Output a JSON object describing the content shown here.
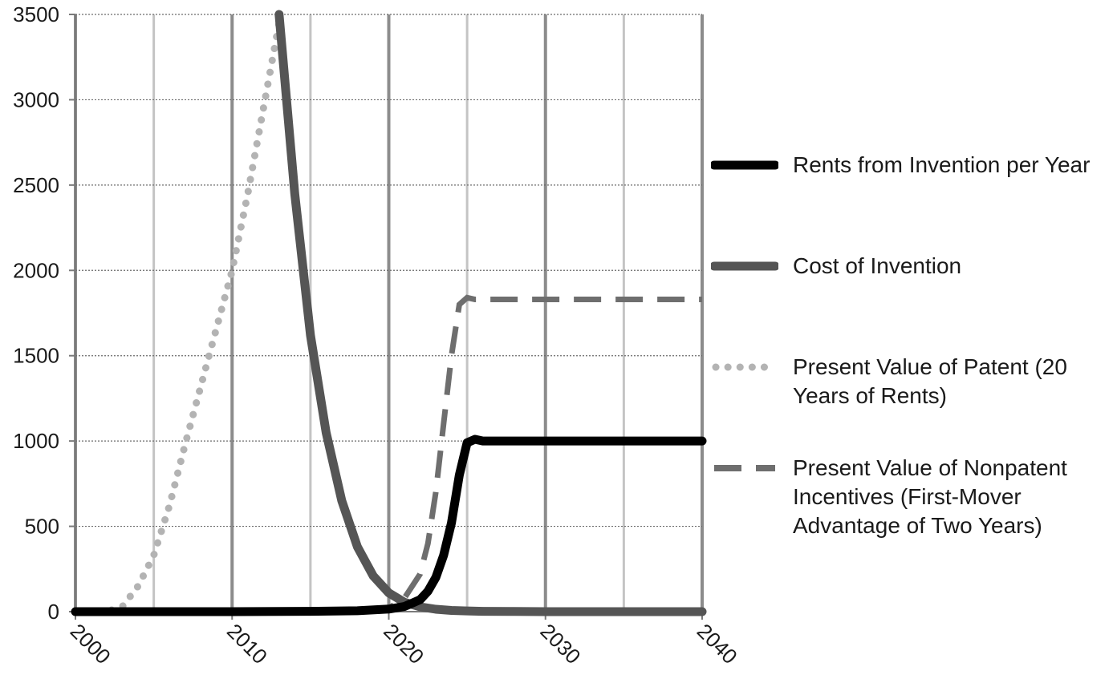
{
  "chart_data": {
    "type": "line",
    "title": "",
    "xlabel": "",
    "ylabel": "",
    "xlim": [
      2000,
      2040
    ],
    "ylim": [
      0,
      3500
    ],
    "x_ticks": [
      2000,
      2010,
      2020,
      2030,
      2040
    ],
    "x_tick_labels": [
      "2000",
      "2010",
      "2020",
      "2030",
      "2040"
    ],
    "y_ticks": [
      0,
      500,
      1000,
      1500,
      2000,
      2500,
      3000,
      3500
    ],
    "y_tick_labels": [
      "0",
      "500",
      "1000",
      "1500",
      "2000",
      "2500",
      "3000",
      "3500"
    ],
    "grid": {
      "horizontal": "dotted",
      "vertical_major": true,
      "vertical_minor": true
    },
    "legend_position": "right",
    "series": [
      {
        "name": "Rents from Invention per Year",
        "style": "solid-thick",
        "color": "#000000",
        "x": [
          2000,
          2010,
          2015,
          2018,
          2020,
          2021,
          2022,
          2022.5,
          2023,
          2023.5,
          2024,
          2024.5,
          2025,
          2025.5,
          2026,
          2030,
          2040
        ],
        "y": [
          0,
          0,
          2,
          5,
          15,
          30,
          70,
          120,
          200,
          330,
          520,
          800,
          990,
          1010,
          1000,
          1000,
          1000
        ]
      },
      {
        "name": "Cost of Invention",
        "style": "solid-thick",
        "color": "#555555",
        "x": [
          2013,
          2014,
          2015,
          2016,
          2017,
          2018,
          2019,
          2020,
          2021,
          2022,
          2023,
          2024,
          2025,
          2026,
          2028,
          2030,
          2040
        ],
        "y": [
          3500,
          2450,
          1620,
          1050,
          650,
          380,
          210,
          110,
          55,
          28,
          14,
          7,
          4,
          2,
          1,
          0,
          0
        ]
      },
      {
        "name": "Present Value of Patent (20 Years of Rents)",
        "style": "dotted",
        "color": "#b3b3b3",
        "x": [
          2000,
          2002,
          2003,
          2004,
          2005,
          2006,
          2007,
          2008,
          2009,
          2010,
          2011,
          2012,
          2013
        ],
        "y": [
          0,
          0,
          30,
          150,
          330,
          620,
          980,
          1320,
          1660,
          2000,
          2450,
          2950,
          3450
        ]
      },
      {
        "name": "Present Value of Nonpatent Incentives (First-Mover Advantage of Two Years)",
        "style": "dashed",
        "color": "#6e6e6e",
        "x": [
          2000,
          2018,
          2020,
          2021,
          2022,
          2022.5,
          2023,
          2023.5,
          2024,
          2024.5,
          2025,
          2025.5,
          2026,
          2030,
          2040
        ],
        "y": [
          0,
          0,
          20,
          80,
          220,
          400,
          700,
          1100,
          1500,
          1800,
          1840,
          1830,
          1830,
          1830,
          1830
        ]
      }
    ]
  },
  "legend": {
    "items": [
      {
        "label": "Rents from Invention per Year"
      },
      {
        "label": "Cost of Invention"
      },
      {
        "label": "Present Value of Patent (20 Years of Rents)"
      },
      {
        "label": "Present Value of Nonpatent Incentives (First-Mover Advantage of Two Years)"
      }
    ]
  }
}
